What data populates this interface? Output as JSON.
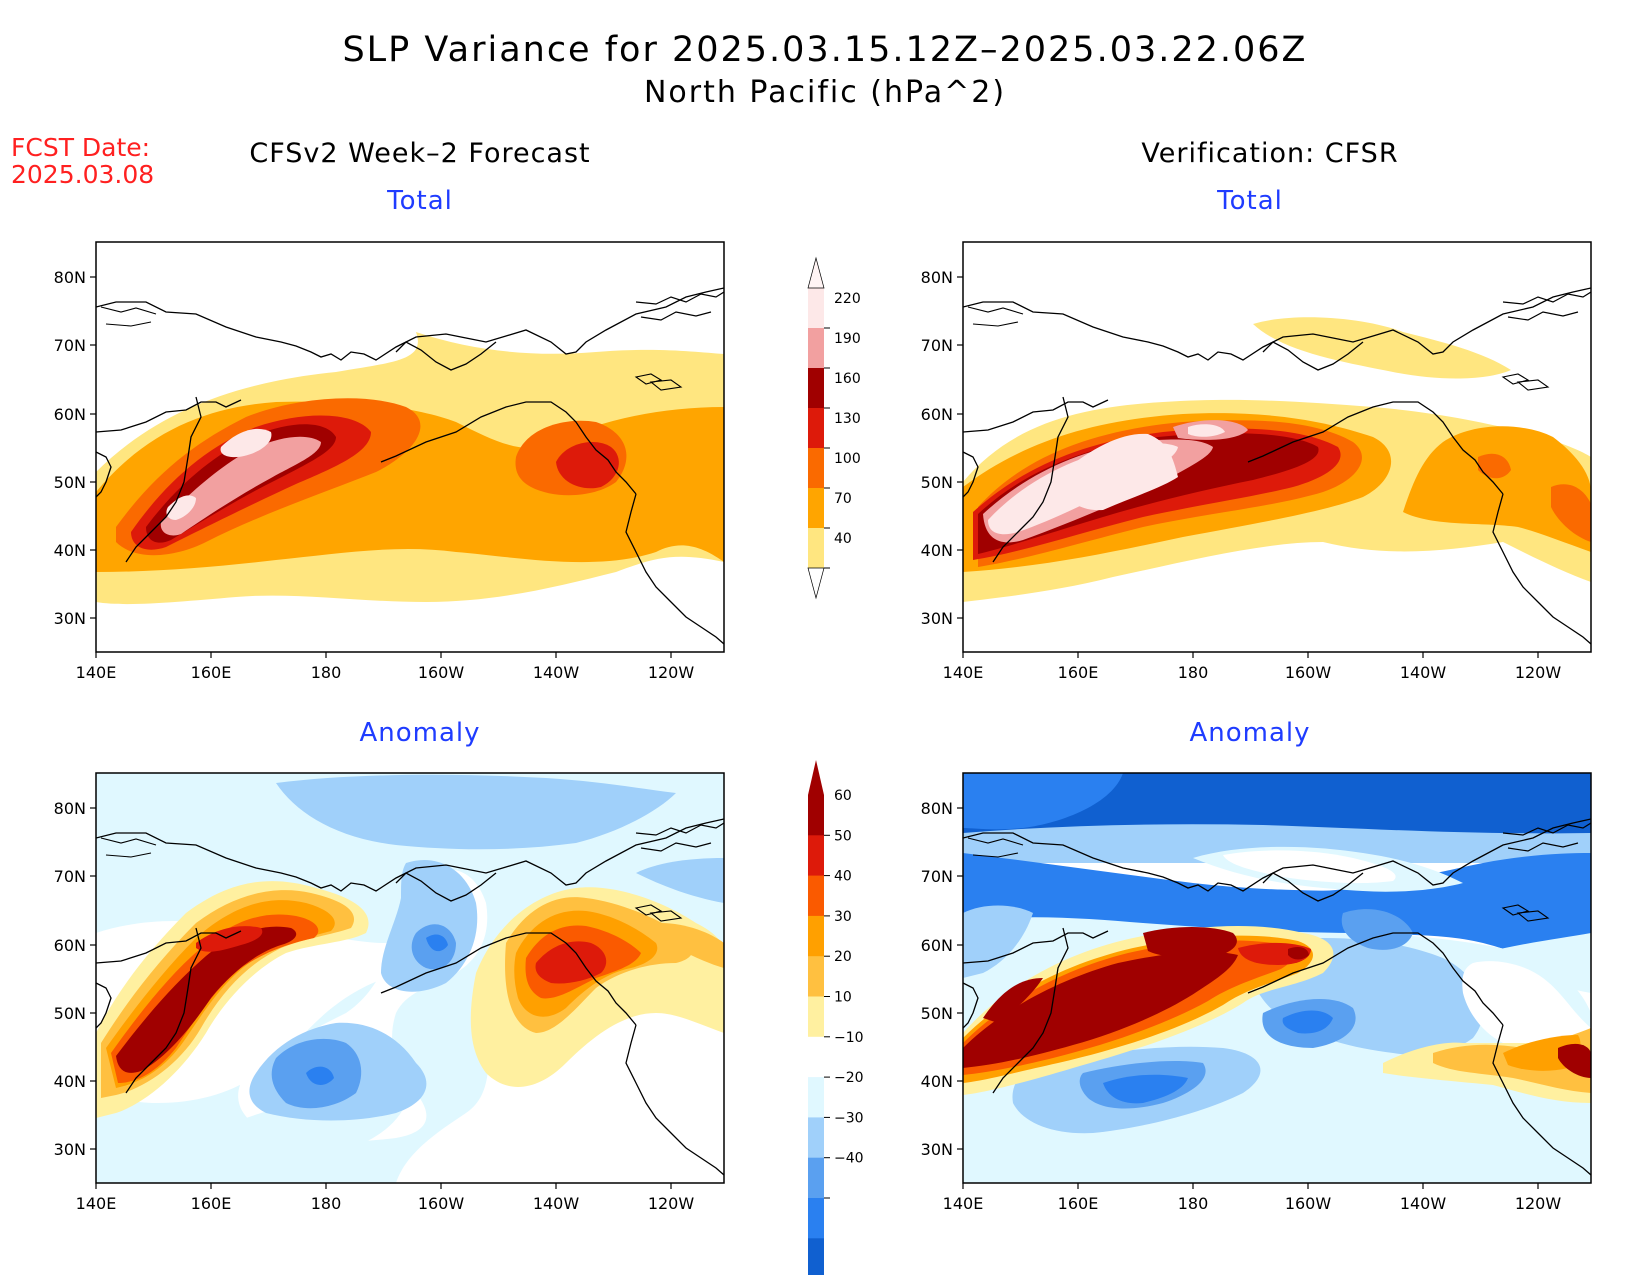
{
  "header": {
    "title_line1": "SLP Variance for 2025.03.15.12Z–2025.03.22.06Z",
    "title_line2": "North Pacific (hPa^2)",
    "fcst_label": "FCST Date:",
    "fcst_date": "2025.03.08"
  },
  "columns": {
    "left_title": "CFSv2 Week–2 Forecast",
    "right_title": "Verification: CFSR"
  },
  "panels": [
    {
      "id": "fcst-total",
      "subtitle": "Total",
      "colorbar": "total"
    },
    {
      "id": "verif-total",
      "subtitle": "Total",
      "colorbar": "total"
    },
    {
      "id": "fcst-anomaly",
      "subtitle": "Anomaly",
      "colorbar": "anomaly"
    },
    {
      "id": "verif-anomaly",
      "subtitle": "Anomaly",
      "colorbar": "anomaly"
    }
  ],
  "axes": {
    "lat_labels": [
      "80N",
      "70N",
      "60N",
      "50N",
      "40N",
      "30N"
    ],
    "lon_labels": [
      "140E",
      "160E",
      "180",
      "160W",
      "140W",
      "120W"
    ]
  },
  "colorbars": {
    "total": {
      "levels": [
        "220",
        "190",
        "160",
        "130",
        "100",
        "70",
        "40"
      ],
      "colors": [
        "#fde8e8",
        "#f2a0a0",
        "#a00000",
        "#dd1a0a",
        "#fa6a00",
        "#ffa500",
        "#ffe680"
      ]
    },
    "anomaly": {
      "levels": [
        "60",
        "50",
        "40",
        "30",
        "20",
        "10",
        "−10",
        "−20",
        "−30",
        "−40"
      ],
      "colors": [
        "#a00000",
        "#dd1a0a",
        "#fa5a00",
        "#ffa000",
        "#ffc040",
        "#fff0a0",
        "#ffffff",
        "#e0f8ff",
        "#a0d0fa",
        "#5aa0f0",
        "#2a80f0",
        "#1060d0"
      ]
    }
  }
}
